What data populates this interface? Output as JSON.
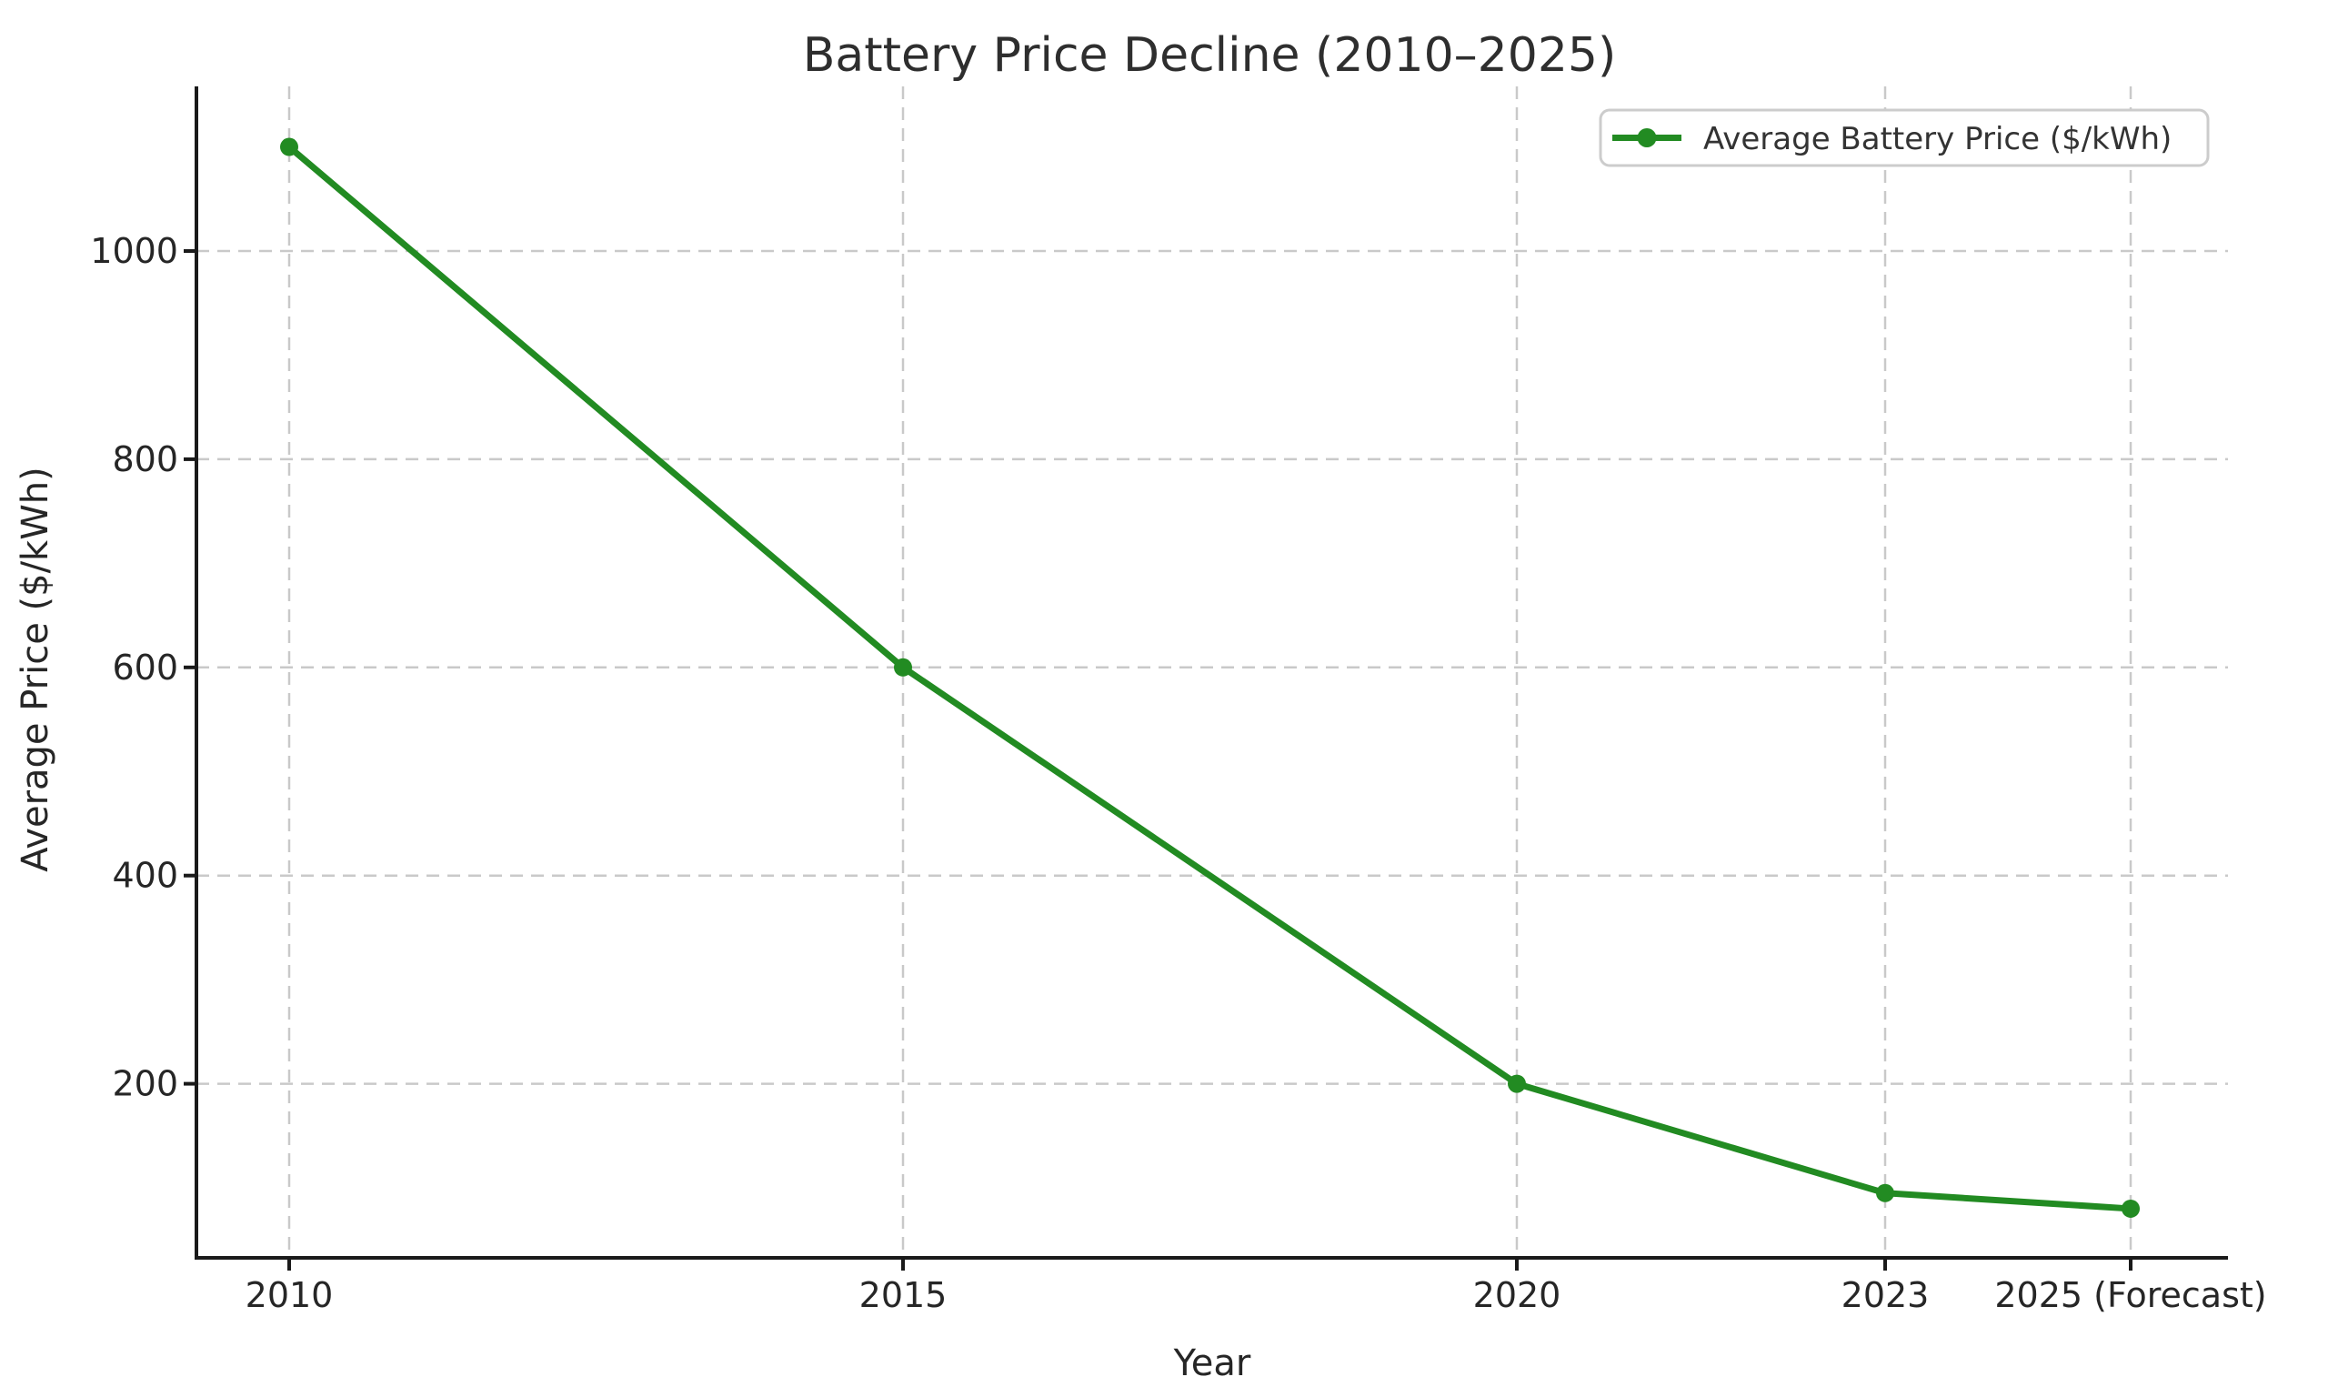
{
  "page": {
    "background": "#ffffff"
  },
  "chart_data": {
    "type": "line",
    "title": "Battery Price Decline (2010–2025)",
    "xlabel": "Year",
    "ylabel": "Average Price ($/kWh)",
    "categories": [
      "2010",
      "2015",
      "2020",
      "2023",
      "2025 (Forecast)"
    ],
    "x_years": [
      2010,
      2015,
      2020,
      2023,
      2025
    ],
    "series": [
      {
        "name": "Average Battery Price ($/kWh)",
        "values": [
          1100,
          600,
          200,
          95,
          80
        ],
        "color": "#228B22",
        "marker": "circle"
      }
    ],
    "yticks": [
      200,
      400,
      600,
      800,
      1000
    ],
    "ylim": [
      30,
      1160
    ],
    "xlim": [
      2009.25,
      2025.8
    ],
    "grid": true,
    "grid_style": "dashed",
    "legend_position": "upper-right",
    "colors": {
      "line": "#228B22",
      "grid": "#c9c9c9",
      "text": "#262626",
      "spine": "#1a1a1a",
      "legend_border": "#cccccc",
      "background": "#ffffff"
    }
  }
}
